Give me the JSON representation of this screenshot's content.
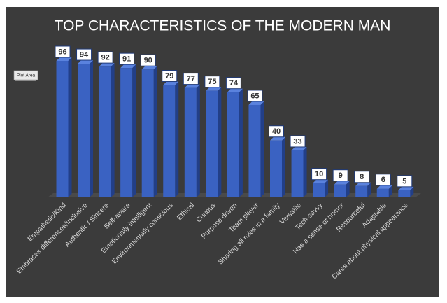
{
  "chart_data": {
    "type": "bar",
    "title": "TOP CHARACTERISTICS OF THE MODERN MAN",
    "categories": [
      "Empathetic/Kind",
      "Embraces differences/Inclusive",
      "Authentic / Sincere",
      "Self-aware",
      "Emotionally intelligent",
      "Environmentally conscious",
      "Ethical",
      "Curious",
      "Purpose driven",
      "Team player",
      "Sharing all roles in a family",
      "Versatile",
      "Tech-savvy",
      "Has a sense of humor",
      "Resourceful",
      "Adaptable",
      "Cares about physical appearance"
    ],
    "values": [
      96,
      94,
      92,
      91,
      90,
      79,
      77,
      75,
      74,
      65,
      40,
      33,
      10,
      9,
      8,
      6,
      5
    ],
    "color": "#3a62c2",
    "tooltip": "Plot Area"
  }
}
